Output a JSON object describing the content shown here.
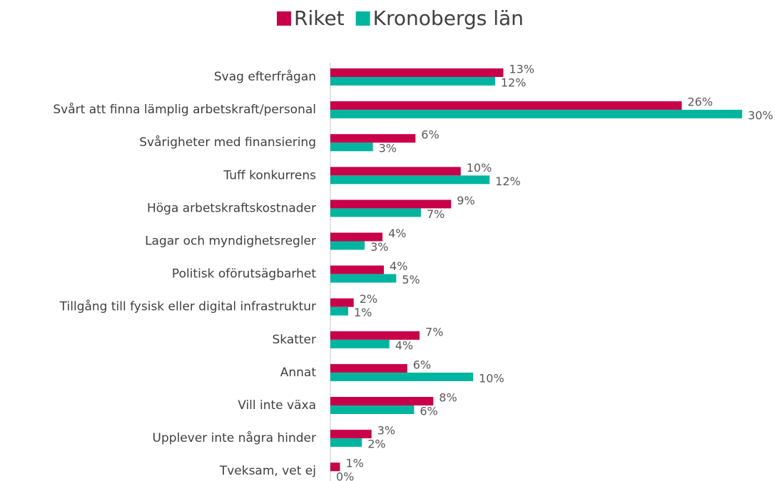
{
  "chart_data": {
    "type": "bar",
    "orientation": "horizontal",
    "categories": [
      "Svag efterfrågan",
      "Svårt att finna lämplig arbetskraft/personal",
      "Svårigheter med finansiering",
      "Tuff konkurrens",
      "Höga arbetskraftskostnader",
      "Lagar och myndighetsregler",
      "Politisk oförutsägbarhet",
      "Tillgång till fysisk eller digital infrastruktur",
      "Skatter",
      "Annat",
      "Vill inte växa",
      "Upplever inte några hinder",
      "Tveksam, vet ej"
    ],
    "series": [
      {
        "name": "Riket",
        "color": "#c8004a",
        "values": [
          12.6,
          25.6,
          6.2,
          9.5,
          8.8,
          3.8,
          3.9,
          1.7,
          6.5,
          5.6,
          7.5,
          3.0,
          0.7
        ],
        "value_labels": [
          "13%",
          "26%",
          "6%",
          "10%",
          "9%",
          "4%",
          "4%",
          "2%",
          "7%",
          "6%",
          "8%",
          "3%",
          "1%"
        ]
      },
      {
        "name": "Kronobergs län",
        "color": "#00b5a0",
        "values": [
          12.0,
          30.0,
          3.1,
          11.6,
          6.6,
          2.5,
          4.8,
          1.3,
          4.3,
          10.4,
          6.1,
          2.3,
          0
        ],
        "value_labels": [
          "12%",
          "30%",
          "3%",
          "12%",
          "7%",
          "3%",
          "5%",
          "1%",
          "4%",
          "10%",
          "6%",
          "2%",
          "0%"
        ]
      }
    ],
    "xlim": [
      0,
      30.2
    ],
    "legend": "top"
  }
}
